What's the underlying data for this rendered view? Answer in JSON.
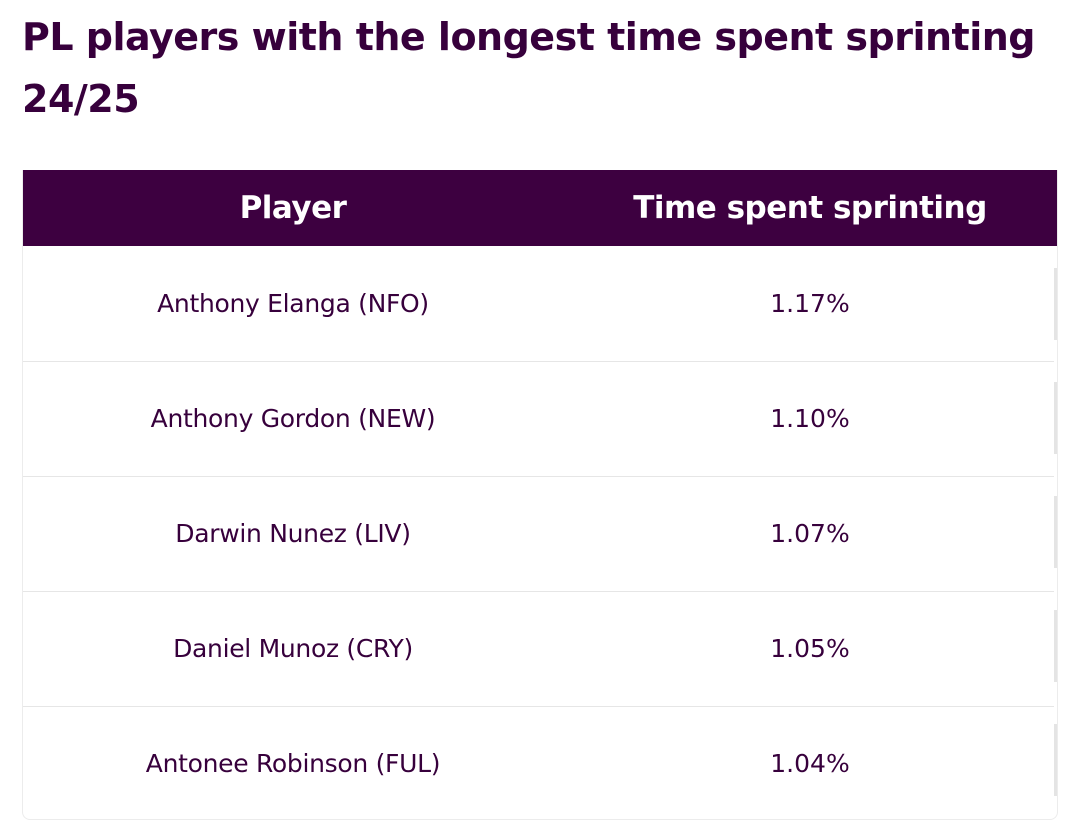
{
  "title": "PL players with the longest time spent sprinting 24/25",
  "table": {
    "headers": {
      "player": "Player",
      "time": "Time spent sprinting"
    },
    "rows": [
      {
        "player": "Anthony Elanga (NFO)",
        "time": "1.17%"
      },
      {
        "player": "Anthony Gordon (NEW)",
        "time": "1.10%"
      },
      {
        "player": "Darwin Nunez (LIV)",
        "time": "1.07%"
      },
      {
        "player": "Daniel Munoz (CRY)",
        "time": "1.05%"
      },
      {
        "player": "Antonee Robinson (FUL)",
        "time": "1.04%"
      }
    ]
  },
  "colors": {
    "brand_purple": "#37003c",
    "header_bg": "#3d0040",
    "row_divider": "#e6e6e6"
  }
}
